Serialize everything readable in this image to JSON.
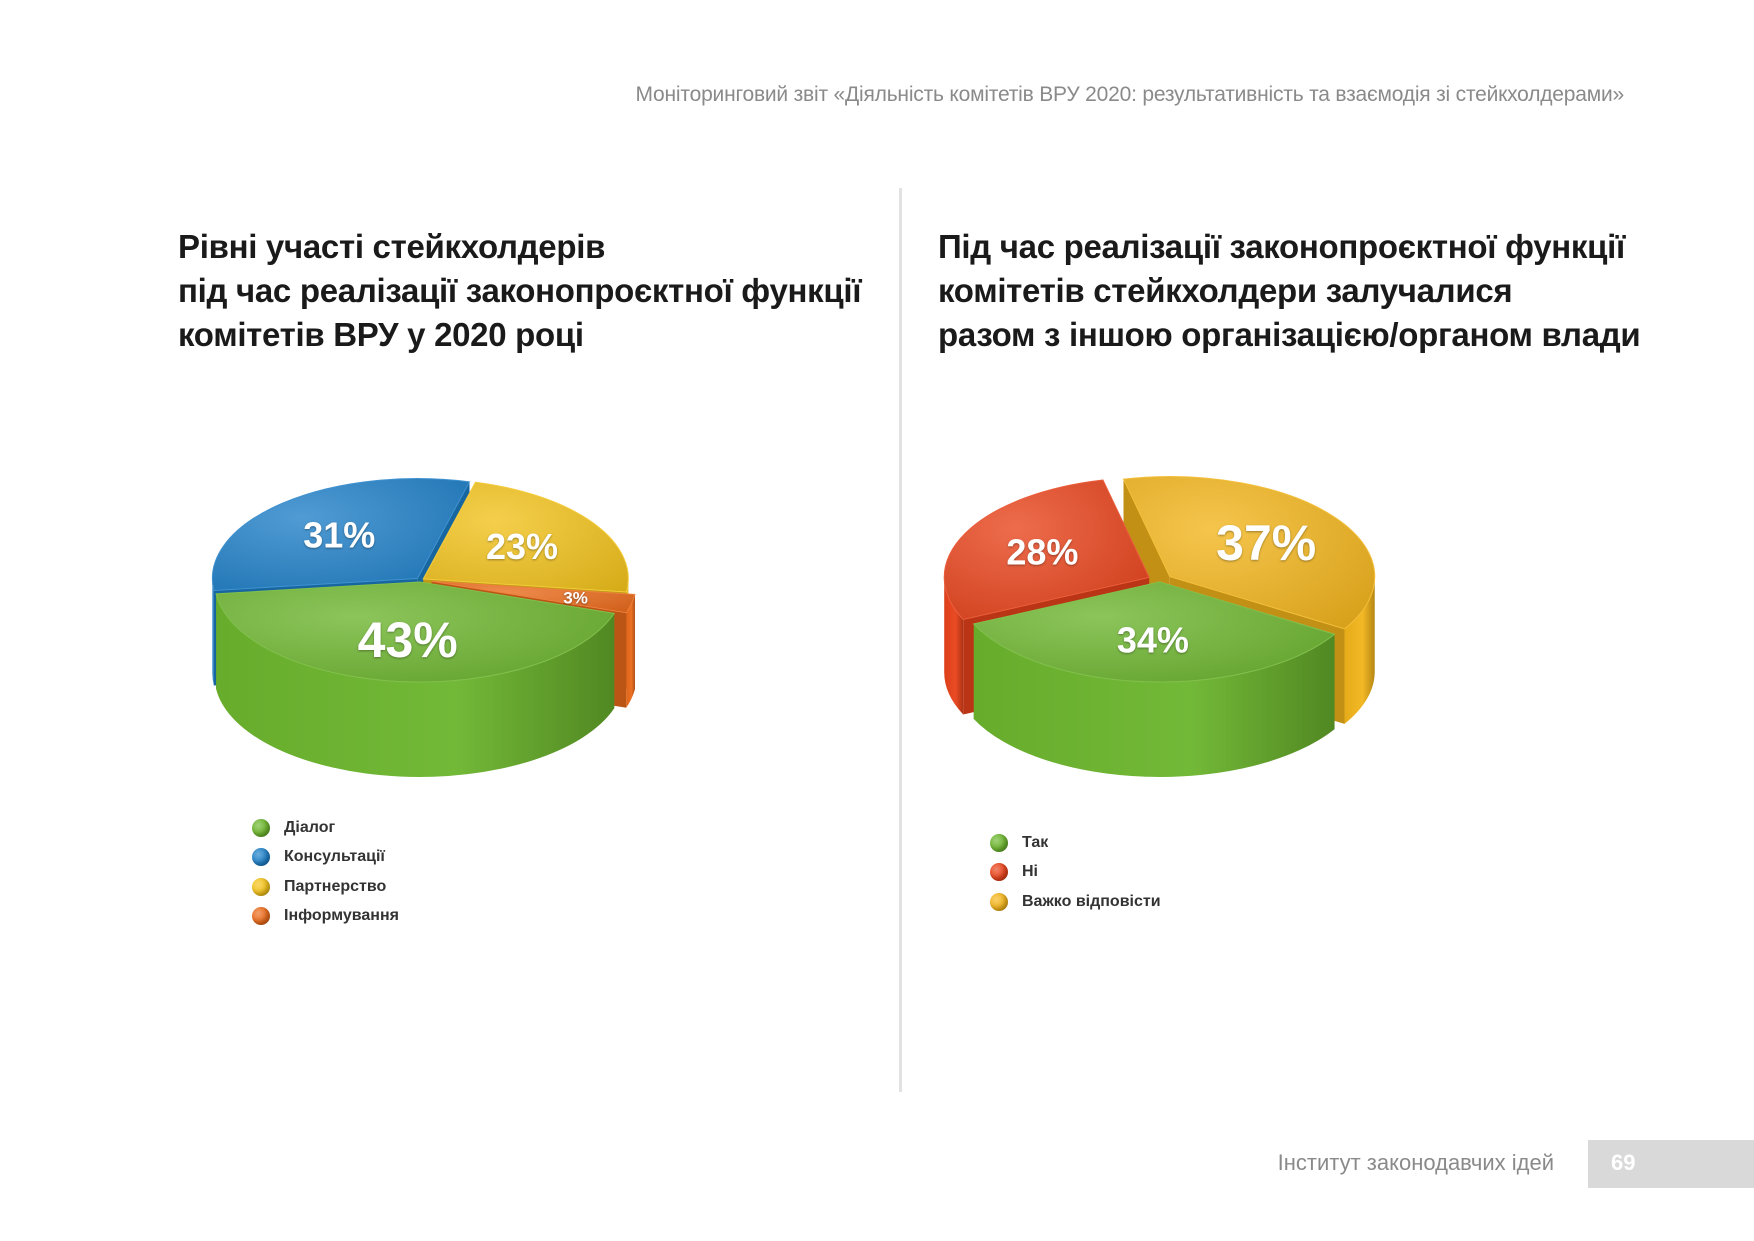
{
  "header": {
    "running_title": "Моніторинговий звіт «Діяльність комітетів ВРУ 2020: результативність та взаємодія зі стейкхолдерами»"
  },
  "footer": {
    "organization": "Інститут законодавчих ідей",
    "page_number": "69"
  },
  "chart_data": [
    {
      "type": "pie",
      "style": "3d-exploded",
      "title_lines": [
        "Рівні участі стейкхолдерів",
        "під час реалізації законопроєктної функції",
        "комітетів ВРУ у 2020 році"
      ],
      "legend_position": "bottom-left",
      "categories": [
        "Діалог",
        "Консультації",
        "Партнерство",
        "Інформування"
      ],
      "values": [
        43,
        31,
        23,
        3
      ],
      "labels": [
        "43%",
        "31%",
        "23%",
        "3%"
      ],
      "colors": [
        "#6cb52d",
        "#1e7fc8",
        "#f2c21a",
        "#ea6a1a"
      ]
    },
    {
      "type": "pie",
      "style": "3d-exploded",
      "title_lines": [
        "Під час реалізації законопроєктної функції",
        "комітетів  стейкхолдери залучалися",
        "разом з іншою організацією/органом влади"
      ],
      "legend_position": "bottom-left",
      "categories": [
        "Так",
        "Ні",
        "Важко відповісти"
      ],
      "values": [
        34,
        28,
        37
      ],
      "labels": [
        "34%",
        "28%",
        "37%"
      ],
      "colors": [
        "#6cb52d",
        "#e8421a",
        "#f2b41a"
      ]
    }
  ]
}
